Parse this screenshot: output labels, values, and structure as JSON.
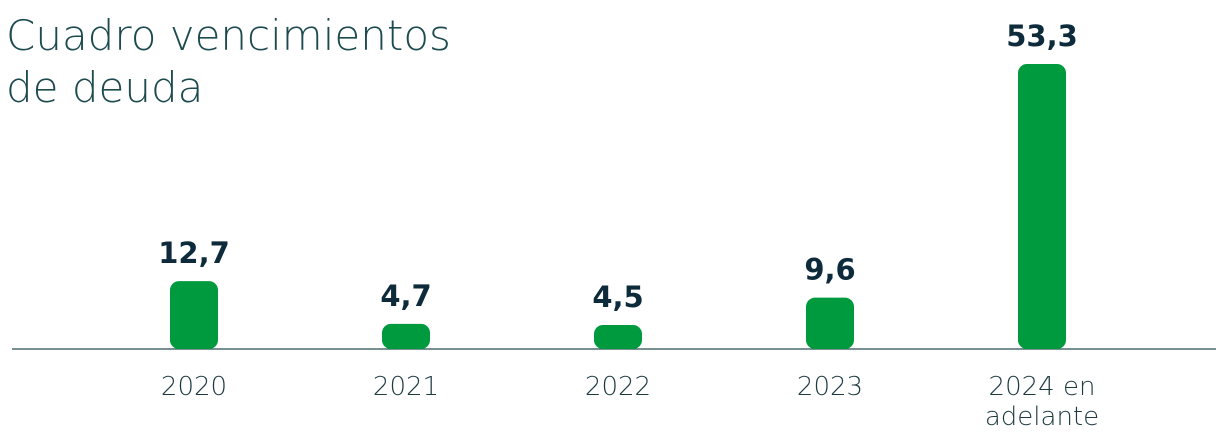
{
  "chart_data": {
    "type": "bar",
    "title": "Cuadro vencimientos de deuda",
    "categories": [
      "2020",
      "2021",
      "2022",
      "2023",
      "2024 en adelante"
    ],
    "values": [
      12.7,
      4.7,
      4.5,
      9.6,
      53.3
    ],
    "value_labels": [
      "12,7",
      "4,7",
      "4,5",
      "9,6",
      "53,3"
    ],
    "color": "#009a3e"
  }
}
